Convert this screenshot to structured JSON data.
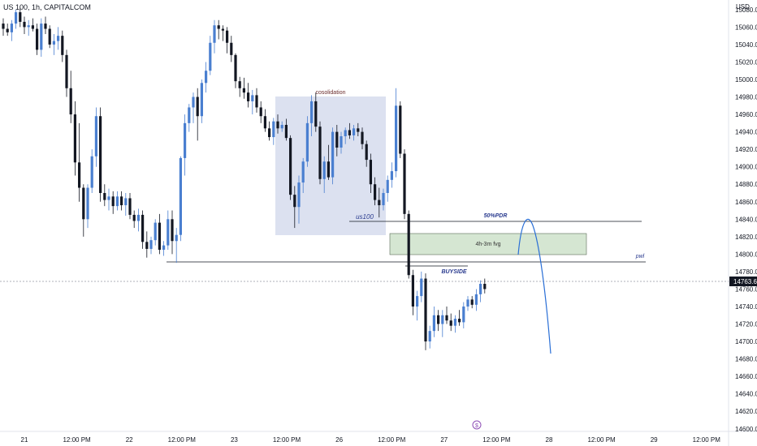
{
  "chart_header": {
    "title": "US 100, 1h, CAPITALCOM"
  },
  "price_axis": {
    "currency": "USD",
    "last_price": "14763.6",
    "last_price_color": "#131722",
    "ticks": [
      "15080.0",
      "15060.0",
      "15040.0",
      "15020.0",
      "15000.0",
      "14980.0",
      "14960.0",
      "14940.0",
      "14920.0",
      "14900.0",
      "14880.0",
      "14860.0",
      "14840.0",
      "14820.0",
      "14800.0",
      "14780.0",
      "14760.0",
      "14740.0",
      "14720.0",
      "14700.0",
      "14680.0",
      "14660.0",
      "14640.0",
      "14620.0",
      "14600.0"
    ]
  },
  "time_axis": {
    "ticks": [
      "21",
      "12:00 PM",
      "22",
      "12:00 PM",
      "23",
      "12:00 PM",
      "26",
      "12:00 PM",
      "27",
      "12:00 PM",
      "28",
      "12:00 PM",
      "29",
      "12:00 PM"
    ]
  },
  "annotations": {
    "consolidation_label": "cosolidation",
    "us100_label": "us100",
    "pdr_label": "50%PDR",
    "fvg_label": "4h-3m fvg",
    "pwl_label": "pwl",
    "buyside_label": "BUYSIDE",
    "events_icon": "dollar-icon"
  },
  "colors": {
    "bull": "#4a7fd0",
    "bear": "#131722",
    "consolidation_fill": "#dce1f0",
    "fvg_fill": "#d5e6d2",
    "projection": "#2a6fd6"
  },
  "chart_data": {
    "type": "candlestick",
    "title": "US 100, 1h, CAPITALCOM",
    "ylabel": "USD",
    "ylim": [
      14597,
      15091
    ],
    "x": [
      "21",
      "12:00 PM",
      "22",
      "12:00 PM",
      "23",
      "12:00 PM",
      "26",
      "12:00 PM",
      "27",
      "12:00 PM",
      "28",
      "12:00 PM",
      "29",
      "12:00 PM"
    ],
    "candles": [
      [
        15064,
        15070,
        15050,
        15058
      ],
      [
        15058,
        15064,
        15050,
        15054
      ],
      [
        15054,
        15068,
        15044,
        15064
      ],
      [
        15064,
        15080,
        15058,
        15077
      ],
      [
        15077,
        15082,
        15060,
        15066
      ],
      [
        15066,
        15072,
        15052,
        15060
      ],
      [
        15060,
        15068,
        15050,
        15062
      ],
      [
        15062,
        15070,
        15055,
        15058
      ],
      [
        15058,
        15064,
        15028,
        15034
      ],
      [
        15034,
        15070,
        15026,
        15064
      ],
      [
        15064,
        15072,
        15052,
        15058
      ],
      [
        15058,
        15062,
        15036,
        15040
      ],
      [
        15040,
        15052,
        15028,
        15044
      ],
      [
        15044,
        15060,
        15034,
        15050
      ],
      [
        15050,
        15056,
        15020,
        15028
      ],
      [
        15028,
        15034,
        14980,
        14990
      ],
      [
        14990,
        15010,
        14950,
        14960
      ],
      [
        14960,
        14975,
        14890,
        14905
      ],
      [
        14905,
        14950,
        14860,
        14876
      ],
      [
        14876,
        14880,
        14820,
        14840
      ],
      [
        14840,
        14880,
        14830,
        14876
      ],
      [
        14876,
        14920,
        14870,
        14912
      ],
      [
        14912,
        14968,
        14900,
        14958
      ],
      [
        14958,
        14968,
        14860,
        14870
      ],
      [
        14870,
        14880,
        14855,
        14862
      ],
      [
        14862,
        14875,
        14850,
        14866
      ],
      [
        14866,
        14872,
        14846,
        14855
      ],
      [
        14855,
        14872,
        14850,
        14866
      ],
      [
        14866,
        14872,
        14850,
        14856
      ],
      [
        14856,
        14870,
        14844,
        14864
      ],
      [
        14864,
        14870,
        14840,
        14845
      ],
      [
        14845,
        14850,
        14830,
        14838
      ],
      [
        14838,
        14852,
        14826,
        14845
      ],
      [
        14845,
        14850,
        14806,
        14814
      ],
      [
        14814,
        14826,
        14796,
        14806
      ],
      [
        14806,
        14820,
        14800,
        14816
      ],
      [
        14816,
        14840,
        14810,
        14836
      ],
      [
        14836,
        14846,
        14800,
        14805
      ],
      [
        14805,
        14815,
        14798,
        14810
      ],
      [
        14810,
        14850,
        14805,
        14840
      ],
      [
        14840,
        14850,
        14800,
        14815
      ],
      [
        14815,
        14830,
        14790,
        14822
      ],
      [
        14822,
        14912,
        14815,
        14910
      ],
      [
        14910,
        14960,
        14890,
        14950
      ],
      [
        14950,
        14972,
        14940,
        14968
      ],
      [
        14968,
        14985,
        14950,
        14980
      ],
      [
        14980,
        14990,
        14930,
        14958
      ],
      [
        14958,
        15000,
        14950,
        14996
      ],
      [
        14996,
        15020,
        14985,
        15010
      ],
      [
        15010,
        15050,
        15005,
        15042
      ],
      [
        15042,
        15068,
        15030,
        15062
      ],
      [
        15062,
        15068,
        15046,
        15058
      ],
      [
        15058,
        15062,
        15044,
        15056
      ],
      [
        15056,
        15060,
        15030,
        15042
      ],
      [
        15042,
        15050,
        15020,
        15028
      ],
      [
        15028,
        15030,
        14990,
        14998
      ],
      [
        14998,
        15003,
        14980,
        14990
      ],
      [
        14990,
        15002,
        14978,
        14985
      ],
      [
        14985,
        14996,
        14968,
        14975
      ],
      [
        14975,
        14988,
        14960,
        14982
      ],
      [
        14982,
        14990,
        14962,
        14968
      ],
      [
        14968,
        14975,
        14950,
        14958
      ],
      [
        14958,
        14966,
        14940,
        14944
      ],
      [
        14944,
        14952,
        14930,
        14934
      ],
      [
        14934,
        14956,
        14925,
        14952
      ],
      [
        14952,
        14960,
        14938,
        14944
      ],
      [
        14944,
        14952,
        14940,
        14948
      ],
      [
        14948,
        14955,
        14930,
        14933
      ],
      [
        14933,
        14936,
        14862,
        14868
      ],
      [
        14868,
        14878,
        14830,
        14854
      ],
      [
        14854,
        14890,
        14835,
        14882
      ],
      [
        14882,
        14910,
        14870,
        14906
      ],
      [
        14906,
        14958,
        14900,
        14950
      ],
      [
        14950,
        14982,
        14935,
        14975
      ],
      [
        14975,
        14985,
        14940,
        14946
      ],
      [
        14946,
        14952,
        14880,
        14886
      ],
      [
        14886,
        14912,
        14870,
        14906
      ],
      [
        14906,
        14925,
        14885,
        14888
      ],
      [
        14888,
        14945,
        14880,
        14940
      ],
      [
        14940,
        14948,
        14912,
        14922
      ],
      [
        14922,
        14940,
        14915,
        14935
      ],
      [
        14935,
        14945,
        14926,
        14942
      ],
      [
        14942,
        14950,
        14932,
        14936
      ],
      [
        14936,
        14948,
        14930,
        14944
      ],
      [
        14944,
        14950,
        14935,
        14940
      ],
      [
        14940,
        14945,
        14920,
        14926
      ],
      [
        14926,
        14930,
        14900,
        14908
      ],
      [
        14908,
        14915,
        14870,
        14880
      ],
      [
        14880,
        14888,
        14856,
        14862
      ],
      [
        14862,
        14876,
        14842,
        14856
      ],
      [
        14856,
        14875,
        14850,
        14870
      ],
      [
        14870,
        14890,
        14860,
        14885
      ],
      [
        14885,
        14905,
        14876,
        14895
      ],
      [
        14895,
        14990,
        14888,
        14970
      ],
      [
        14970,
        14975,
        14910,
        14915
      ],
      [
        14915,
        14920,
        14840,
        14846
      ],
      [
        14846,
        14850,
        14772,
        14776
      ],
      [
        14776,
        14782,
        14730,
        14740
      ],
      [
        14740,
        14758,
        14724,
        14752
      ],
      [
        14752,
        14780,
        14745,
        14772
      ],
      [
        14772,
        14778,
        14690,
        14700
      ],
      [
        14700,
        14718,
        14692,
        14712
      ],
      [
        14712,
        14740,
        14705,
        14730
      ],
      [
        14730,
        14736,
        14712,
        14720
      ],
      [
        14720,
        14736,
        14705,
        14730
      ],
      [
        14730,
        14740,
        14720,
        14724
      ],
      [
        14724,
        14732,
        14712,
        14718
      ],
      [
        14718,
        14730,
        14710,
        14726
      ],
      [
        14726,
        14736,
        14718,
        14722
      ],
      [
        14722,
        14745,
        14715,
        14740
      ],
      [
        14740,
        14752,
        14735,
        14748
      ],
      [
        14748,
        14752,
        14738,
        14742
      ],
      [
        14742,
        14760,
        14735,
        14754
      ],
      [
        14754,
        14770,
        14745,
        14766
      ],
      [
        14766,
        14772,
        14755,
        14760
      ]
    ],
    "levels": [
      {
        "name": "50%PDR",
        "price": 14835
      },
      {
        "name": "pwl",
        "price": 14785
      },
      {
        "name": "BUYSIDE",
        "price": 14775
      }
    ],
    "zones": [
      {
        "name": "cosolidation",
        "from": 14814,
        "to": 14988
      },
      {
        "name": "4h-3m fvg",
        "from": 14795,
        "to": 14820
      }
    ],
    "last_price": 14763.6
  }
}
